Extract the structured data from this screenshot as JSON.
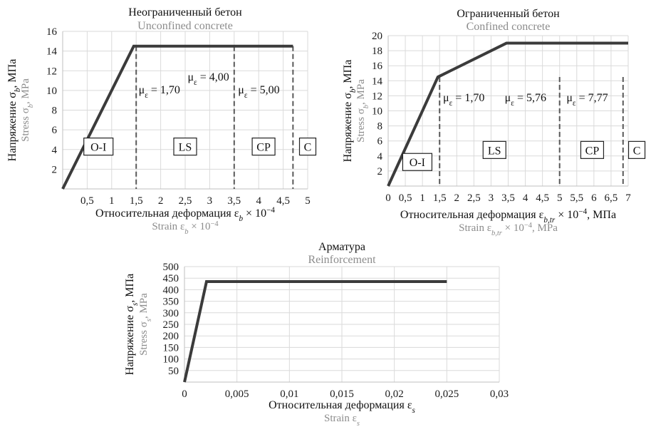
{
  "chart_data": [
    {
      "id": "unconfined",
      "type": "line",
      "title": "Неограниченный бетон",
      "subtitle": "Unconfined concrete",
      "xlabel": "Относительная деформация εb × 10−4",
      "xlabel_en": "Strain εb × 10−4",
      "ylabel": "Напряжение σb, МПа",
      "ylabel_en": "Stress σb, MPa",
      "xlim": [
        0,
        5
      ],
      "ylim": [
        0,
        16
      ],
      "x_ticks": [
        "0,5",
        "1",
        "1,5",
        "2",
        "2,5",
        "3",
        "3,5",
        "4",
        "4,5",
        "5"
      ],
      "y_ticks": [
        "2",
        "4",
        "6",
        "8",
        "10",
        "12",
        "14",
        "16"
      ],
      "series": [
        {
          "x": [
            0,
            1.45,
            4.7
          ],
          "y": [
            0,
            14.5,
            14.5
          ]
        }
      ],
      "limits": [
        1.5,
        3.5,
        4.7
      ],
      "annotations": [
        {
          "text": "με = 1,70",
          "x": 1.55,
          "y": 9.7
        },
        {
          "text": "με = 4,00",
          "x": 2.55,
          "y": 11.0
        },
        {
          "text": "με = 5,00",
          "x": 3.58,
          "y": 9.7
        }
      ],
      "zones": [
        {
          "label": "O-I",
          "x": 0.73,
          "y": 4.3
        },
        {
          "label": "LS",
          "x": 2.5,
          "y": 4.3
        },
        {
          "label": "CP",
          "x": 4.1,
          "y": 4.3
        },
        {
          "label": "C",
          "x": 5.0,
          "y": 4.3
        }
      ]
    },
    {
      "id": "confined",
      "type": "line",
      "title": "Ограниченный бетон",
      "subtitle": "Confined concrete",
      "xlabel": "Относительная деформация εb,tr × 10−4, МПа",
      "xlabel_en": "Strain εb,tr × 10−4, MPa",
      "ylabel": "Напряжение σb, МПа",
      "ylabel_en": "Stress σb, MPa",
      "xlim": [
        0,
        7
      ],
      "ylim": [
        0,
        20
      ],
      "x_ticks": [
        "0",
        "0,5",
        "1",
        "1,5",
        "2",
        "2,5",
        "3",
        "3,5",
        "4",
        "4,5",
        "5",
        "5,5",
        "6",
        "6,5",
        "7"
      ],
      "y_ticks": [
        "2",
        "4",
        "6",
        "8",
        "10",
        "12",
        "14",
        "16",
        "18",
        "20"
      ],
      "series": [
        {
          "x": [
            0,
            1.45,
            3.45,
            7.0
          ],
          "y": [
            0,
            14.5,
            19,
            19
          ]
        }
      ],
      "limits": [
        1.5,
        5.0,
        6.85
      ],
      "annotations": [
        {
          "text": "με = 1,70",
          "x": 1.6,
          "y": 11.3
        },
        {
          "text": "με = 5,76",
          "x": 3.4,
          "y": 11.3
        },
        {
          "text": "με = 7,77",
          "x": 5.2,
          "y": 11.3
        }
      ],
      "zones": [
        {
          "label": "O-I",
          "x": 0.85,
          "y": 3.2
        },
        {
          "label": "LS",
          "x": 3.1,
          "y": 4.8
        },
        {
          "label": "CP",
          "x": 5.95,
          "y": 4.8
        },
        {
          "label": "C",
          "x": 7.25,
          "y": 4.8
        }
      ]
    },
    {
      "id": "reinforcement",
      "type": "line",
      "title": "Арматура",
      "subtitle": "Reinforcement",
      "xlabel": "Относительная деформация εs",
      "xlabel_en": "Strain εs",
      "ylabel": "Напряжение σs, МПа",
      "ylabel_en": "Stress σs, MPa",
      "xlim": [
        0,
        0.03
      ],
      "ylim": [
        0,
        500
      ],
      "x_ticks": [
        "0",
        "0,005",
        "0,01",
        "0,015",
        "0,02",
        "0,025",
        "0,03"
      ],
      "y_ticks": [
        "50",
        "100",
        "150",
        "200",
        "250",
        "300",
        "350",
        "400",
        "450",
        "500"
      ],
      "series": [
        {
          "x": [
            0,
            0.0021,
            0.025
          ],
          "y": [
            0,
            435,
            435
          ]
        }
      ],
      "limits": [],
      "annotations": [],
      "zones": []
    }
  ],
  "colors": {
    "curve": "#3b3b3b",
    "grid": "#dadada",
    "english_text": "#8c8c8c"
  }
}
